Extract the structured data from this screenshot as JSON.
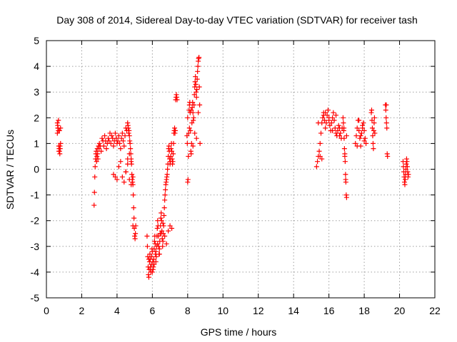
{
  "chart_data": {
    "type": "scatter",
    "title": "Day 308 of 2014, Sidereal Day-to-day VTEC variation (SDTVAR) for receiver tash",
    "xlabel": "GPS time / hours",
    "ylabel": "SDTVAR / TECUs",
    "xlim": [
      0,
      22
    ],
    "ylim": [
      -5,
      5
    ],
    "xticks": [
      0,
      2,
      4,
      6,
      8,
      10,
      12,
      14,
      16,
      18,
      20,
      22
    ],
    "yticks": [
      -5,
      -4,
      -3,
      -2,
      -1,
      0,
      1,
      2,
      3,
      4,
      5
    ],
    "grid": true,
    "marker": "+",
    "color": "#ff0000",
    "series": [
      {
        "name": "SDTVAR",
        "x": [
          0.62,
          0.64,
          0.66,
          0.68,
          0.7,
          0.72,
          0.74,
          0.76,
          0.78,
          0.8,
          0.62,
          0.65,
          0.68,
          0.71,
          0.74,
          0.77,
          0.8,
          2.7,
          2.72,
          2.74,
          2.76,
          2.78,
          2.8,
          2.82,
          2.84,
          2.86,
          2.88,
          2.9,
          2.92,
          2.95,
          2.98,
          3.0,
          3.05,
          3.1,
          3.15,
          3.2,
          3.25,
          3.3,
          3.35,
          3.4,
          3.45,
          3.5,
          3.55,
          3.6,
          3.65,
          3.7,
          3.75,
          3.8,
          3.85,
          3.9,
          3.95,
          4.0,
          4.05,
          4.1,
          4.15,
          4.2,
          4.25,
          4.3,
          4.35,
          4.4,
          4.45,
          4.5,
          4.55,
          4.6,
          4.62,
          4.64,
          4.66,
          4.68,
          4.7,
          4.72,
          4.74,
          4.76,
          4.78,
          4.8,
          4.82,
          4.84,
          4.86,
          4.88,
          4.9,
          4.92,
          4.94,
          4.96,
          4.98,
          5.0,
          5.02,
          5.04,
          5.06,
          3.8,
          3.9,
          4.0,
          4.1,
          4.2,
          4.3,
          4.4,
          4.5,
          4.6,
          4.7,
          4.8,
          4.9,
          4.5,
          4.6,
          4.7,
          4.8,
          4.9,
          5.7,
          5.72,
          5.74,
          5.76,
          5.78,
          5.8,
          5.82,
          5.84,
          5.86,
          5.88,
          5.9,
          5.92,
          5.94,
          5.96,
          5.98,
          6.0,
          6.02,
          6.04,
          6.06,
          6.08,
          6.1,
          6.12,
          6.14,
          6.16,
          6.18,
          6.2,
          6.22,
          6.24,
          6.26,
          6.28,
          6.3,
          6.32,
          6.34,
          6.36,
          6.38,
          6.4,
          6.42,
          6.44,
          6.46,
          6.48,
          6.5,
          6.52,
          6.54,
          6.56,
          6.58,
          6.6,
          6.62,
          6.64,
          6.66,
          6.68,
          6.7,
          6.72,
          6.74,
          6.76,
          6.78,
          6.8,
          6.82,
          6.84,
          6.86,
          6.88,
          6.9,
          6.92,
          6.94,
          6.96,
          6.98,
          7.0,
          7.02,
          7.04,
          7.06,
          7.08,
          7.1,
          7.12,
          7.14,
          7.16,
          7.18,
          7.2,
          7.22,
          7.24,
          7.26,
          7.28,
          7.3,
          7.32,
          7.34,
          7.36,
          7.38,
          7.4,
          5.8,
          5.9,
          6.0,
          6.1,
          6.2,
          6.3,
          6.4,
          6.5,
          6.6,
          6.7,
          6.8,
          6.9,
          7.0,
          7.1,
          7.96,
          7.98,
          8.0,
          8.02,
          8.04,
          8.06,
          8.08,
          8.1,
          8.12,
          8.14,
          8.16,
          8.18,
          8.2,
          8.22,
          8.24,
          8.26,
          8.28,
          8.3,
          8.32,
          8.34,
          8.36,
          8.38,
          8.4,
          8.42,
          8.44,
          8.46,
          8.48,
          8.5,
          8.52,
          8.54,
          8.56,
          8.58,
          8.6,
          8.62,
          8.64,
          8.66,
          8.68,
          8.7,
          8.0,
          8.1,
          8.2,
          8.3,
          8.4,
          8.5,
          8.6,
          15.3,
          15.35,
          15.4,
          15.45,
          15.5,
          15.55,
          15.6,
          15.65,
          15.7,
          15.75,
          15.8,
          15.85,
          15.9,
          15.95,
          16.0,
          16.05,
          16.1,
          16.15,
          16.2,
          16.25,
          16.3,
          16.35,
          16.4,
          16.45,
          16.5,
          16.55,
          16.6,
          16.65,
          16.7,
          16.75,
          15.4,
          15.5,
          15.6,
          15.7,
          15.8,
          16.0,
          16.2,
          16.4,
          16.6,
          16.8,
          16.82,
          16.84,
          16.86,
          16.88,
          16.9,
          16.92,
          16.94,
          16.96,
          16.98,
          17.0,
          16.85,
          16.9,
          16.95,
          17.0,
          17.5,
          17.55,
          17.6,
          17.65,
          17.7,
          17.75,
          17.8,
          17.85,
          17.9,
          17.95,
          18.0,
          18.05,
          18.1,
          17.6,
          17.7,
          17.8,
          17.9,
          18.0,
          18.4,
          18.42,
          18.44,
          18.46,
          18.48,
          18.5,
          18.52,
          18.54,
          18.56,
          18.58,
          18.6,
          19.2,
          19.22,
          19.24,
          19.26,
          19.28,
          19.3,
          19.32,
          19.25,
          20.2,
          20.22,
          20.24,
          20.26,
          20.28,
          20.3,
          20.32,
          20.34,
          20.36,
          20.38,
          20.4,
          20.42,
          20.44,
          20.46,
          20.48,
          20.5
        ],
        "y": [
          1.8,
          1.7,
          1.6,
          1.5,
          0.9,
          0.8,
          0.7,
          0.6,
          0.8,
          1.0,
          1.4,
          1.6,
          1.9,
          0.7,
          1.5,
          0.9,
          1.6,
          -1.4,
          -0.9,
          -0.3,
          0.1,
          0.4,
          0.6,
          0.7,
          0.3,
          0.5,
          0.8,
          0.6,
          0.4,
          0.9,
          0.8,
          1.0,
          0.9,
          0.7,
          1.2,
          1.1,
          0.9,
          1.3,
          1.1,
          0.8,
          1.0,
          1.2,
          1.1,
          1.4,
          1.0,
          1.3,
          1.2,
          0.9,
          1.1,
          1.4,
          1.2,
          1.0,
          1.1,
          1.3,
          1.0,
          0.8,
          1.2,
          1.4,
          1.1,
          0.9,
          1.3,
          1.6,
          1.5,
          1.8,
          1.7,
          1.6,
          1.4,
          1.5,
          1.3,
          1.1,
          1.0,
          0.8,
          0.6,
          0.4,
          0.2,
          -0.2,
          -0.4,
          -0.5,
          -0.6,
          -1.0,
          -1.5,
          -1.9,
          -2.3,
          -2.6,
          -2.7,
          -2.5,
          -2.2,
          -0.2,
          -0.3,
          -0.4,
          0.1,
          0.3,
          -0.3,
          -0.5,
          -0.1,
          0.2,
          -0.4,
          -0.6,
          -2.2,
          -0.1,
          0.4,
          0.6,
          0.3,
          -0.3,
          -2.6,
          -3.0,
          -3.4,
          -3.8,
          -4.1,
          -4.2,
          -3.9,
          -3.6,
          -3.3,
          -3.5,
          -3.9,
          -4.0,
          -3.7,
          -3.4,
          -3.1,
          -3.2,
          -3.6,
          -3.9,
          -3.8,
          -3.5,
          -3.1,
          -2.8,
          -2.6,
          -2.9,
          -3.3,
          -3.6,
          -3.4,
          -3.0,
          -2.6,
          -2.3,
          -2.0,
          -2.2,
          -2.6,
          -3.0,
          -3.3,
          -3.1,
          -2.8,
          -2.5,
          -2.2,
          -1.9,
          -1.7,
          -2.0,
          -2.4,
          -2.7,
          -3.0,
          -2.8,
          -2.5,
          -2.2,
          -1.8,
          -1.5,
          -1.2,
          -1.0,
          -0.8,
          -0.6,
          -0.5,
          -0.4,
          -0.3,
          -0.2,
          0.0,
          0.2,
          0.5,
          0.8,
          0.9,
          0.7,
          0.4,
          0.2,
          0.3,
          0.5,
          0.8,
          1.0,
          0.7,
          0.4,
          0.2,
          0.3,
          0.6,
          1.0,
          1.4,
          1.5,
          1.6,
          1.4,
          1.5,
          2.7,
          2.8,
          2.9,
          2.8,
          2.7,
          -3.5,
          -3.8,
          -4.0,
          -3.7,
          -3.2,
          -2.9,
          -3.3,
          -2.5,
          -2.1,
          -2.6,
          -2.9,
          -2.4,
          -2.2,
          -2.3,
          1.3,
          1.0,
          -0.5,
          -0.4,
          0.5,
          1.4,
          2.3,
          2.5,
          2.6,
          2.2,
          1.5,
          0.7,
          0.6,
          1.0,
          1.8,
          2.4,
          2.6,
          2.2,
          1.9,
          2.0,
          2.5,
          2.9,
          3.2,
          3.4,
          3.6,
          3.3,
          3.0,
          2.8,
          3.1,
          3.5,
          3.8,
          4.0,
          4.2,
          4.3,
          4.35,
          3.2,
          2.5,
          1.0,
          2.0,
          1.6,
          2.3,
          0.9,
          1.4,
          1.2,
          2.2,
          0.1,
          0.3,
          0.5,
          0.7,
          1.0,
          1.4,
          1.8,
          2.0,
          2.2,
          1.9,
          1.6,
          1.8,
          2.1,
          2.3,
          2.0,
          1.7,
          1.5,
          1.8,
          2.0,
          2.2,
          1.9,
          1.6,
          1.4,
          1.3,
          1.5,
          1.7,
          1.6,
          1.4,
          1.2,
          1.6,
          1.8,
          0.5,
          0.4,
          2.1,
          2.2,
          1.9,
          1.5,
          2.1,
          1.3,
          2.0,
          1.8,
          1.5,
          1.2,
          0.8,
          0.5,
          0.3,
          -0.2,
          -0.5,
          -1.0,
          -1.1,
          1.6,
          0.6,
          -0.4,
          1.3,
          1.0,
          1.3,
          1.6,
          1.9,
          1.5,
          1.2,
          0.9,
          1.4,
          1.7,
          1.8,
          1.5,
          1.2,
          1.0,
          0.9,
          1.9,
          1.3,
          1.6,
          1.1,
          2.2,
          2.3,
          1.9,
          1.6,
          1.3,
          1.0,
          0.8,
          1.5,
          1.8,
          2.0,
          1.4,
          2.5,
          2.3,
          2.0,
          1.8,
          1.6,
          0.6,
          0.5,
          2.5,
          0.3,
          0.1,
          -0.1,
          -0.3,
          -0.5,
          -0.6,
          -0.4,
          -0.2,
          0.0,
          0.2,
          0.4,
          0.3,
          0.1,
          -0.1,
          -0.3,
          -0.2
        ]
      }
    ]
  }
}
